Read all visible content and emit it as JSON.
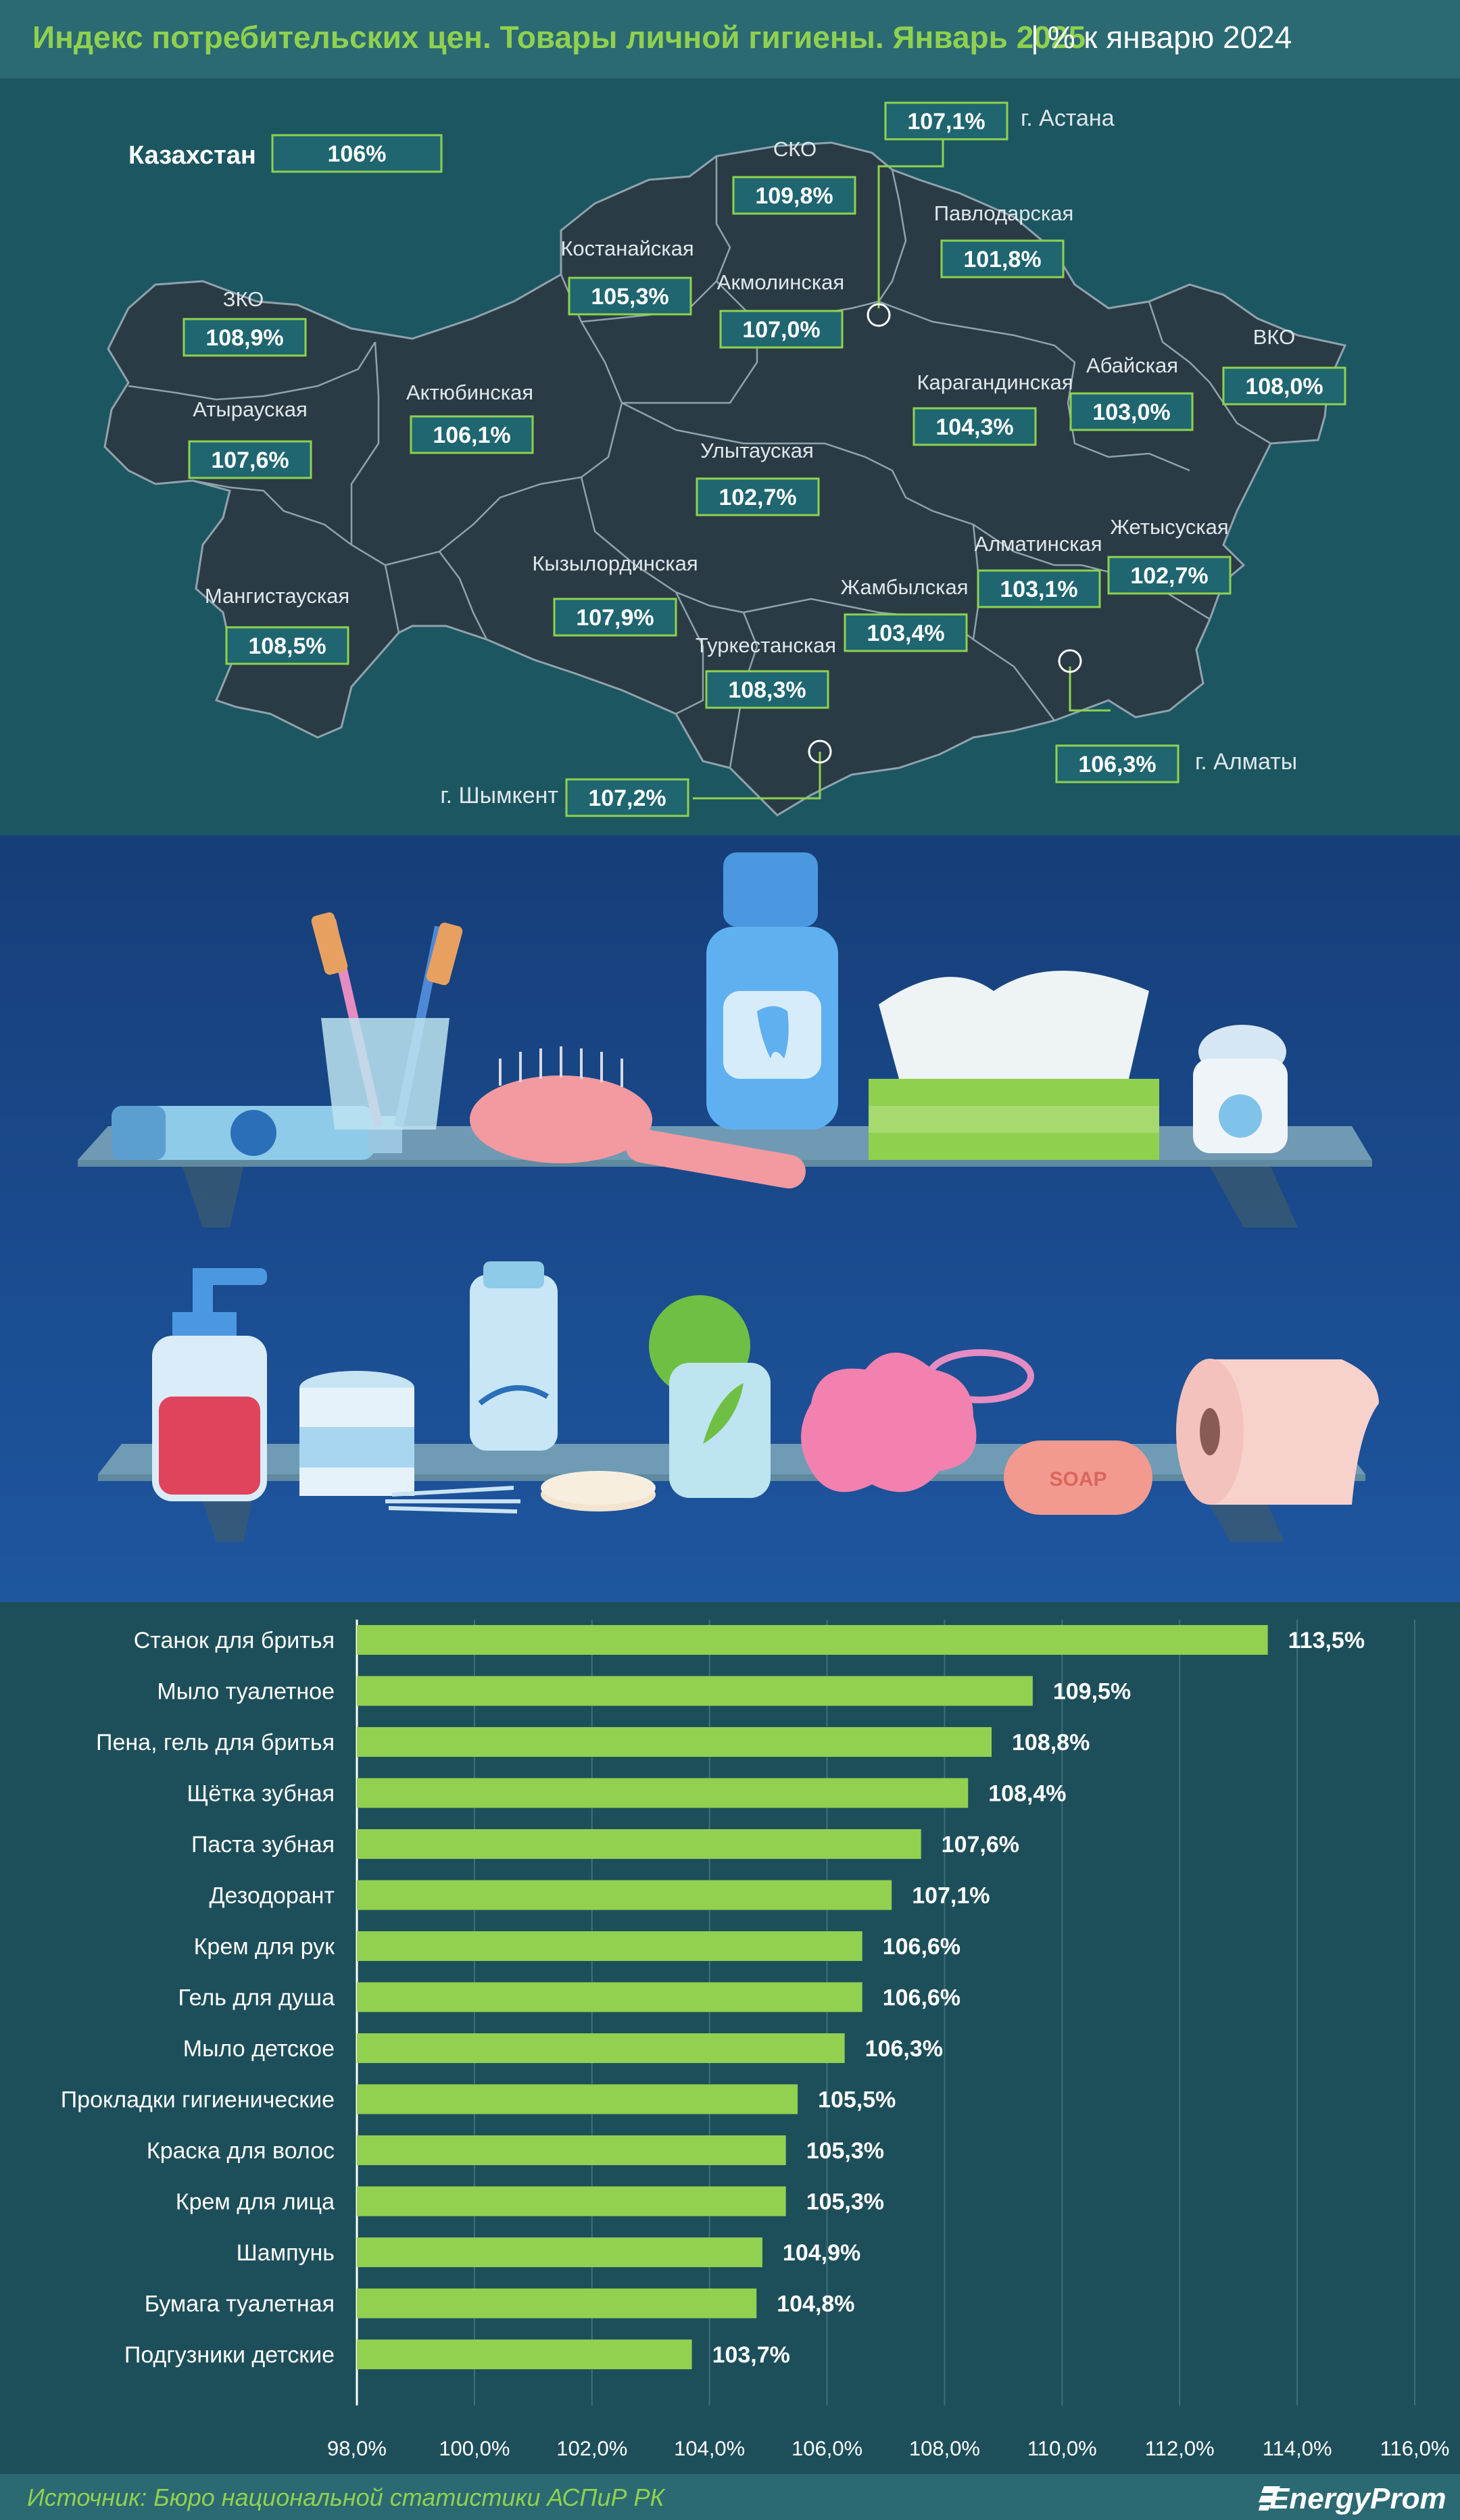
{
  "header": {
    "title": "Индекс потребительских цен. Товары личной гигиены. Январь 2025",
    "subtitle": "| % к январю 2024"
  },
  "map": {
    "kazakhstan": {
      "name": "Казахстан",
      "value": "106%"
    },
    "regions": [
      {
        "name": "ЗКО",
        "value": "108,9%"
      },
      {
        "name": "Атырауская",
        "value": "107,6%"
      },
      {
        "name": "Мангистауская",
        "value": "108,5%"
      },
      {
        "name": "Актюбинская",
        "value": "106,1%"
      },
      {
        "name": "Костанайская",
        "value": "105,3%"
      },
      {
        "name": "СКО",
        "value": "109,8%"
      },
      {
        "name": "Акмолинская",
        "value": "107,0%"
      },
      {
        "name": "Павлодарская",
        "value": "101,8%"
      },
      {
        "name": "Карагандинская",
        "value": "104,3%"
      },
      {
        "name": "Абайская",
        "value": "103,0%"
      },
      {
        "name": "ВКО",
        "value": "108,0%"
      },
      {
        "name": "Улытауская",
        "value": "102,7%"
      },
      {
        "name": "Кызылординская",
        "value": "107,9%"
      },
      {
        "name": "Туркестанская",
        "value": "108,3%"
      },
      {
        "name": "Жамбылская",
        "value": "103,4%"
      },
      {
        "name": "Алматинская",
        "value": "103,1%"
      },
      {
        "name": "Жетысуская",
        "value": "102,7%"
      }
    ],
    "cities": [
      {
        "name": "г. Астана",
        "value": "107,1%"
      },
      {
        "name": "г. Алматы",
        "value": "106,3%"
      },
      {
        "name": "г. Шымкент",
        "value": "107,2%"
      }
    ],
    "colors": {
      "land": "#2a3b45",
      "border": "#8fa3ad",
      "box_border": "#8fd14f",
      "box_fill": "#1f6670"
    }
  },
  "illustration": {
    "shelf1_icons": [
      "toothpaste-icon",
      "toothbrush-cup-icon",
      "hairbrush-icon",
      "mouthwash-icon",
      "tissue-box-icon",
      "dental-floss-icon"
    ],
    "shelf2_icons": [
      "soap-dispenser-icon",
      "cotton-jar-icon",
      "cotton-swabs-icon",
      "cotton-pads-icon",
      "cotton-pack-icon",
      "deodorant-icon",
      "bath-sponge-icon",
      "soap-bar-icon",
      "toilet-paper-icon"
    ],
    "soap_text": "SOAP"
  },
  "chart_data": {
    "type": "bar",
    "orientation": "horizontal",
    "categories": [
      "Станок для бритья",
      "Мыло туалетное",
      "Пена, гель для бритья",
      "Щётка зубная",
      "Паста зубная",
      "Дезодорант",
      "Крем для рук",
      "Гель для душа",
      "Мыло детское",
      "Прокладки гигиенические",
      "Краска для волос",
      "Крем для лица",
      "Шампунь",
      "Бумага туалетная",
      "Подгузники детские"
    ],
    "values": [
      113.5,
      109.5,
      108.8,
      108.4,
      107.6,
      107.1,
      106.6,
      106.6,
      106.3,
      105.5,
      105.3,
      105.3,
      104.9,
      104.8,
      103.7
    ],
    "value_labels": [
      "113,5%",
      "109,5%",
      "108,8%",
      "108,4%",
      "107,6%",
      "107,1%",
      "106,6%",
      "106,6%",
      "106,3%",
      "105,5%",
      "105,3%",
      "105,3%",
      "104,9%",
      "104,8%",
      "103,7%"
    ],
    "xlim": [
      98,
      116
    ],
    "xticks": [
      98,
      100,
      102,
      104,
      106,
      108,
      110,
      112,
      114,
      116
    ],
    "xtick_labels": [
      "98,0%",
      "100,0%",
      "102,0%",
      "104,0%",
      "106,0%",
      "108,0%",
      "110,0%",
      "112,0%",
      "114,0%",
      "116,0%"
    ],
    "grid": true,
    "bar_color": "#92d050"
  },
  "footer": {
    "source": "Источник: Бюро национальной статистики АСПиР РК",
    "brand": "EnergyProm"
  }
}
